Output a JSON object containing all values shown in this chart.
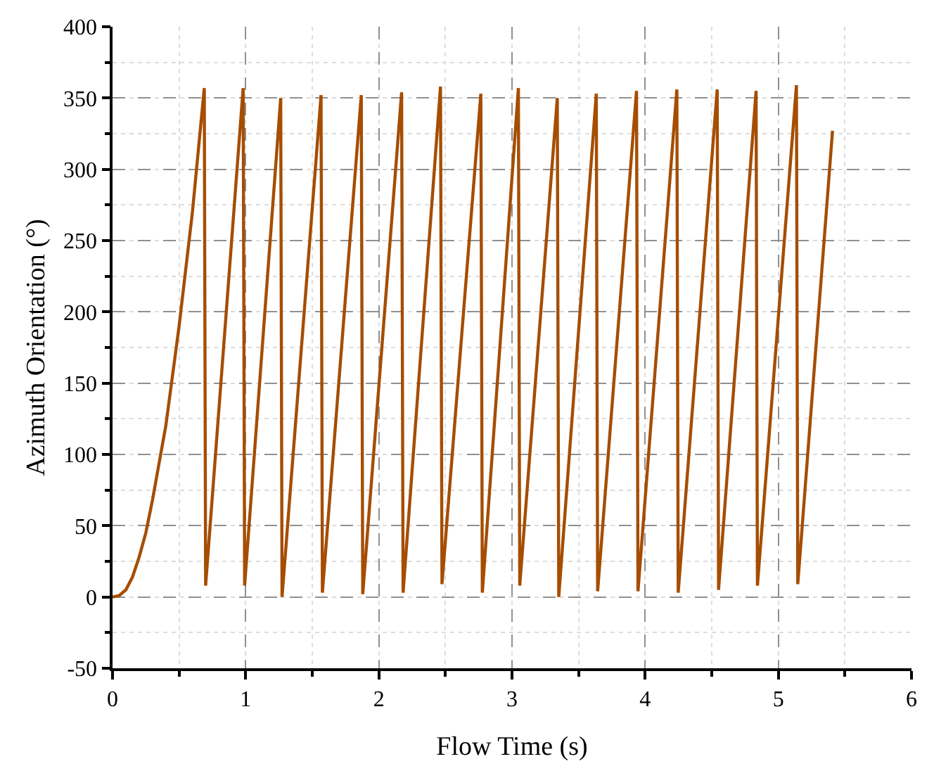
{
  "chart_data": {
    "type": "line",
    "xlabel": "Flow Time (s)",
    "ylabel": "Azimuth Orientation (°)",
    "xlim": [
      0,
      6
    ],
    "ylim": [
      -50,
      400
    ],
    "xticks": [
      0,
      1,
      2,
      3,
      4,
      5,
      6
    ],
    "yticks": [
      -50,
      0,
      50,
      100,
      150,
      200,
      250,
      300,
      350,
      400
    ],
    "grid": true,
    "marker": "none",
    "line_style": "solid",
    "series": [
      {
        "color": "#a64d00",
        "x": [
          0,
          0.05,
          0.1,
          0.15,
          0.2,
          0.25,
          0.3,
          0.4,
          0.5,
          0.6,
          0.689,
          0.699,
          0.981,
          0.992,
          1.263,
          1.273,
          1.566,
          1.576,
          1.868,
          1.879,
          2.171,
          2.182,
          2.463,
          2.474,
          2.766,
          2.777,
          3.048,
          3.058,
          3.34,
          3.351,
          3.633,
          3.643,
          3.935,
          3.946,
          4.238,
          4.248,
          4.541,
          4.551,
          4.833,
          4.843,
          5.136,
          5.146,
          5.407
        ],
        "values": [
          0,
          1,
          5,
          14,
          28,
          45,
          68,
          120,
          190,
          270,
          357,
          8,
          357,
          8,
          350,
          0,
          352,
          3,
          352,
          2,
          354,
          3,
          358,
          9,
          353,
          3,
          357,
          8,
          350,
          0,
          353,
          4,
          355,
          4,
          356,
          3,
          356,
          5,
          355,
          8,
          359,
          9,
          327
        ]
      }
    ]
  }
}
